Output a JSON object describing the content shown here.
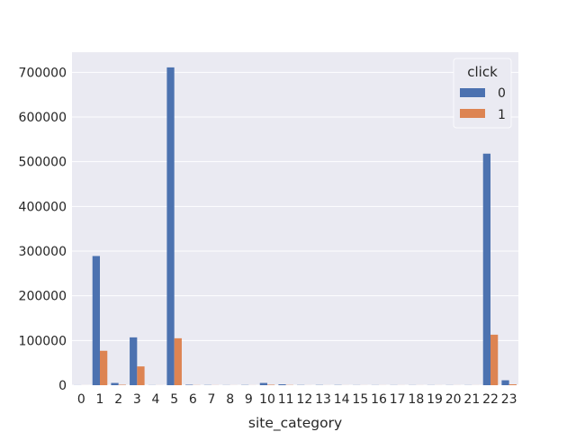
{
  "chart_data": {
    "type": "bar",
    "title": "",
    "xlabel": "site_category",
    "ylabel": "",
    "ylim": [
      0,
      745000
    ],
    "yticks": [
      0,
      100000,
      200000,
      300000,
      400000,
      500000,
      600000,
      700000
    ],
    "grid": true,
    "legend": {
      "title": "click",
      "position": "top-right"
    },
    "categories": [
      "0",
      "1",
      "2",
      "3",
      "4",
      "5",
      "6",
      "7",
      "8",
      "9",
      "10",
      "11",
      "12",
      "13",
      "14",
      "15",
      "16",
      "17",
      "18",
      "19",
      "20",
      "21",
      "22",
      "23"
    ],
    "series": [
      {
        "name": "0",
        "color": "#4c72b0",
        "values": [
          200,
          289000,
          5000,
          107000,
          300,
          711000,
          1000,
          500,
          300,
          500,
          5000,
          2000,
          500,
          500,
          500,
          300,
          300,
          300,
          300,
          300,
          300,
          300,
          518000,
          11000
        ]
      },
      {
        "name": "1",
        "color": "#dd8452",
        "values": [
          50,
          77000,
          1000,
          42000,
          100,
          105000,
          300,
          200,
          100,
          100,
          1000,
          500,
          100,
          100,
          100,
          100,
          100,
          100,
          100,
          100,
          100,
          100,
          113000,
          2000
        ]
      }
    ]
  }
}
